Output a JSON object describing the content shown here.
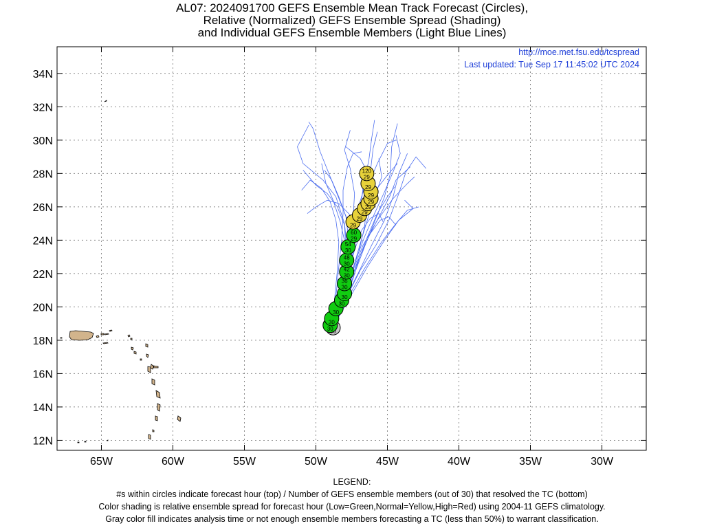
{
  "title": {
    "line1": "AL07: 2024091700 GEFS Ensemble Mean Track Forecast (Circles),",
    "line2": "Relative (Normalized) GEFS Ensemble Spread (Shading)",
    "line3": "and Individual GEFS Ensemble Members (Light Blue Lines)"
  },
  "info": {
    "url": "http://moe.met.fsu.edu/tcspread",
    "updated": "Last updated: Tue Sep 17 11:45:02 UTC 2024"
  },
  "map": {
    "lon_range": [
      -68.1,
      -26.9
    ],
    "lat_range": [
      11.4,
      35.6
    ],
    "lon_ticks": [
      {
        "value": -65,
        "label": "65W"
      },
      {
        "value": -60,
        "label": "60W"
      },
      {
        "value": -55,
        "label": "55W"
      },
      {
        "value": -50,
        "label": "50W"
      },
      {
        "value": -45,
        "label": "45W"
      },
      {
        "value": -40,
        "label": "40W"
      },
      {
        "value": -35,
        "label": "35W"
      },
      {
        "value": -30,
        "label": "30W"
      }
    ],
    "lat_ticks": [
      {
        "value": 12,
        "label": "12N"
      },
      {
        "value": 14,
        "label": "14N"
      },
      {
        "value": 16,
        "label": "16N"
      },
      {
        "value": 18,
        "label": "18N"
      },
      {
        "value": 20,
        "label": "20N"
      },
      {
        "value": 22,
        "label": "22N"
      },
      {
        "value": 24,
        "label": "24N"
      },
      {
        "value": 26,
        "label": "26N"
      },
      {
        "value": 28,
        "label": "28N"
      },
      {
        "value": 30,
        "label": "30N"
      },
      {
        "value": 32,
        "label": "32N"
      },
      {
        "value": 34,
        "label": "34N"
      }
    ],
    "grid": true,
    "colors": {
      "land": "#d2b48c",
      "member_track": "#4a6cf0",
      "low_spread": "#11cc11",
      "normal_spread": "#e8d23a",
      "gray_fill": "#c8c8c8"
    }
  },
  "mean_track": [
    {
      "lon": -48.8,
      "lat": 18.75,
      "top": "",
      "bottom": "30",
      "color": "gray"
    },
    {
      "lon": -49.0,
      "lat": 18.9,
      "top": "",
      "bottom": "30",
      "color": "green"
    },
    {
      "lon": -48.9,
      "lat": 19.3,
      "top": "",
      "bottom": "30",
      "color": "green"
    },
    {
      "lon": -48.6,
      "lat": 19.9,
      "top": "",
      "bottom": "30",
      "color": "green"
    },
    {
      "lon": -48.2,
      "lat": 20.4,
      "top": "",
      "bottom": "30",
      "color": "green"
    },
    {
      "lon": -48.0,
      "lat": 20.8,
      "top": "",
      "bottom": "30",
      "color": "green"
    },
    {
      "lon": -48.0,
      "lat": 21.4,
      "top": "36",
      "bottom": "30",
      "color": "green"
    },
    {
      "lon": -47.85,
      "lat": 22.1,
      "top": "42",
      "bottom": "30",
      "color": "green"
    },
    {
      "lon": -47.85,
      "lat": 22.8,
      "top": "48",
      "bottom": "30",
      "color": "green"
    },
    {
      "lon": -47.75,
      "lat": 23.6,
      "top": "54",
      "bottom": "30",
      "color": "green"
    },
    {
      "lon": -47.35,
      "lat": 24.3,
      "top": "60",
      "bottom": "29",
      "color": "green"
    },
    {
      "lon": -47.4,
      "lat": 25.1,
      "top": "",
      "bottom": "29",
      "color": "yellow"
    },
    {
      "lon": -46.95,
      "lat": 25.5,
      "top": "",
      "bottom": "29",
      "color": "yellow"
    },
    {
      "lon": -46.6,
      "lat": 25.9,
      "top": "",
      "bottom": "29",
      "color": "yellow"
    },
    {
      "lon": -46.35,
      "lat": 26.2,
      "top": "",
      "bottom": "29",
      "color": "yellow"
    },
    {
      "lon": -46.15,
      "lat": 26.5,
      "top": "",
      "bottom": "29",
      "color": "yellow"
    },
    {
      "lon": -46.15,
      "lat": 26.9,
      "top": "",
      "bottom": "29",
      "color": "yellow"
    },
    {
      "lon": -46.35,
      "lat": 27.4,
      "top": "",
      "bottom": "29",
      "color": "yellow"
    },
    {
      "lon": -46.45,
      "lat": 28.0,
      "top": "120",
      "bottom": "29",
      "color": "yellow"
    }
  ],
  "ensemble_members": [
    [
      [
        -48.8,
        18.8
      ],
      [
        -48.3,
        20.2
      ],
      [
        -47.7,
        21.6
      ],
      [
        -47.4,
        23.2
      ],
      [
        -47.6,
        24.8
      ],
      [
        -48.3,
        26.3
      ],
      [
        -49.0,
        27.8
      ],
      [
        -49.7,
        29.3
      ],
      [
        -50.2,
        30.7
      ],
      [
        -50.5,
        31.1
      ]
    ],
    [
      [
        -48.8,
        18.8
      ],
      [
        -48.4,
        20.0
      ],
      [
        -48.0,
        21.6
      ],
      [
        -47.8,
        23.4
      ],
      [
        -48.0,
        25.0
      ],
      [
        -48.6,
        26.6
      ],
      [
        -49.5,
        27.6
      ],
      [
        -50.9,
        28.6
      ],
      [
        -51.3,
        29.6
      ],
      [
        -50.5,
        30.9
      ]
    ],
    [
      [
        -48.8,
        18.8
      ],
      [
        -48.2,
        20.2
      ],
      [
        -47.6,
        21.8
      ],
      [
        -47.0,
        23.3
      ],
      [
        -46.6,
        24.8
      ],
      [
        -46.4,
        26.4
      ],
      [
        -46.2,
        28.0
      ],
      [
        -46.0,
        29.5
      ],
      [
        -45.7,
        30.5
      ]
    ],
    [
      [
        -48.8,
        18.8
      ],
      [
        -48.1,
        20.3
      ],
      [
        -47.3,
        22.0
      ],
      [
        -46.6,
        23.6
      ],
      [
        -45.9,
        25.1
      ],
      [
        -45.2,
        26.6
      ],
      [
        -44.8,
        28.0
      ],
      [
        -44.7,
        29.6
      ],
      [
        -44.3,
        31.0
      ]
    ],
    [
      [
        -48.8,
        18.8
      ],
      [
        -48.0,
        20.4
      ],
      [
        -47.0,
        22.1
      ],
      [
        -46.1,
        23.7
      ],
      [
        -45.2,
        25.2
      ],
      [
        -44.6,
        26.6
      ],
      [
        -44.2,
        28.0
      ],
      [
        -43.6,
        29.2
      ]
    ],
    [
      [
        -48.8,
        18.8
      ],
      [
        -47.9,
        20.5
      ],
      [
        -46.9,
        22.2
      ],
      [
        -45.8,
        23.7
      ],
      [
        -44.9,
        25.2
      ],
      [
        -44.2,
        26.8
      ],
      [
        -43.7,
        28.1
      ],
      [
        -43.0,
        29.0
      ],
      [
        -42.3,
        28.3
      ]
    ],
    [
      [
        -48.8,
        18.8
      ],
      [
        -47.8,
        20.5
      ],
      [
        -46.6,
        22.3
      ],
      [
        -45.4,
        23.9
      ],
      [
        -44.4,
        25.0
      ],
      [
        -43.6,
        25.8
      ],
      [
        -42.8,
        26.0
      ]
    ],
    [
      [
        -48.8,
        18.8
      ],
      [
        -47.6,
        20.6
      ],
      [
        -46.4,
        22.4
      ],
      [
        -45.2,
        24.0
      ],
      [
        -44.2,
        25.2
      ],
      [
        -43.2,
        25.9
      ],
      [
        -43.8,
        26.4
      ]
    ],
    [
      [
        -48.8,
        18.8
      ],
      [
        -48.6,
        20.0
      ],
      [
        -48.2,
        21.8
      ],
      [
        -47.9,
        23.4
      ],
      [
        -48.0,
        24.9
      ],
      [
        -48.5,
        26.0
      ],
      [
        -49.2,
        26.8
      ],
      [
        -50.0,
        27.3
      ],
      [
        -50.9,
        28.2
      ]
    ],
    [
      [
        -48.8,
        18.8
      ],
      [
        -48.5,
        20.3
      ],
      [
        -48.1,
        22.0
      ],
      [
        -47.9,
        23.6
      ],
      [
        -48.3,
        25.1
      ],
      [
        -48.8,
        26.4
      ],
      [
        -49.3,
        27.4
      ],
      [
        -49.6,
        28.6
      ]
    ],
    [
      [
        -48.8,
        18.8
      ],
      [
        -48.3,
        20.4
      ],
      [
        -47.9,
        22.1
      ],
      [
        -47.5,
        23.8
      ],
      [
        -47.4,
        25.3
      ],
      [
        -47.3,
        26.8
      ],
      [
        -47.6,
        28.3
      ],
      [
        -48.0,
        29.4
      ],
      [
        -47.6,
        30.6
      ]
    ],
    [
      [
        -48.8,
        18.8
      ],
      [
        -48.2,
        20.5
      ],
      [
        -47.7,
        22.2
      ],
      [
        -47.2,
        24.0
      ],
      [
        -46.9,
        25.6
      ],
      [
        -46.7,
        27.2
      ],
      [
        -46.3,
        28.8
      ],
      [
        -46.1,
        30.1
      ],
      [
        -45.9,
        31.2
      ]
    ],
    [
      [
        -48.8,
        18.8
      ],
      [
        -48.1,
        20.5
      ],
      [
        -47.4,
        22.3
      ],
      [
        -46.8,
        24.1
      ],
      [
        -46.3,
        25.5
      ],
      [
        -45.8,
        26.8
      ],
      [
        -45.4,
        27.8
      ],
      [
        -45.6,
        28.9
      ]
    ],
    [
      [
        -48.8,
        18.8
      ],
      [
        -48.0,
        20.6
      ],
      [
        -47.2,
        22.4
      ],
      [
        -46.4,
        24.2
      ],
      [
        -45.7,
        25.6
      ],
      [
        -45.0,
        26.6
      ],
      [
        -44.5,
        27.2
      ]
    ],
    [
      [
        -48.8,
        18.8
      ],
      [
        -48.2,
        20.8
      ],
      [
        -47.6,
        22.6
      ],
      [
        -47.3,
        24.3
      ],
      [
        -47.6,
        25.5
      ],
      [
        -48.4,
        26.2
      ],
      [
        -49.2,
        26.4
      ],
      [
        -50.0,
        26.0
      ],
      [
        -50.6,
        25.6
      ]
    ],
    [
      [
        -48.8,
        18.8
      ],
      [
        -48.3,
        20.6
      ],
      [
        -47.8,
        22.4
      ],
      [
        -47.7,
        24.0
      ],
      [
        -47.9,
        25.4
      ],
      [
        -48.4,
        26.6
      ],
      [
        -48.9,
        27.6
      ],
      [
        -49.4,
        28.2
      ]
    ],
    [
      [
        -48.8,
        18.8
      ],
      [
        -48.0,
        20.7
      ],
      [
        -47.3,
        22.6
      ],
      [
        -46.6,
        24.2
      ],
      [
        -45.9,
        25.6
      ],
      [
        -45.2,
        26.9
      ],
      [
        -44.6,
        28.1
      ],
      [
        -44.1,
        29.2
      ],
      [
        -44.4,
        30.3
      ]
    ],
    [
      [
        -48.8,
        18.8
      ],
      [
        -47.9,
        20.8
      ],
      [
        -47.1,
        22.7
      ],
      [
        -46.2,
        24.4
      ],
      [
        -45.4,
        25.7
      ],
      [
        -44.8,
        26.7
      ],
      [
        -44.4,
        27.6
      ],
      [
        -43.4,
        28.4
      ]
    ],
    [
      [
        -48.8,
        18.8
      ],
      [
        -48.4,
        20.4
      ],
      [
        -48.1,
        22.2
      ],
      [
        -47.7,
        23.9
      ],
      [
        -47.0,
        25.4
      ],
      [
        -46.0,
        26.8
      ],
      [
        -45.0,
        27.9
      ],
      [
        -44.3,
        28.6
      ]
    ],
    [
      [
        -48.8,
        18.8
      ],
      [
        -48.6,
        20.6
      ],
      [
        -48.4,
        22.4
      ],
      [
        -48.2,
        24.0
      ],
      [
        -48.1,
        25.6
      ],
      [
        -48.1,
        27.0
      ],
      [
        -47.8,
        28.4
      ],
      [
        -47.4,
        29.2
      ],
      [
        -46.8,
        29.3
      ]
    ],
    [
      [
        -48.8,
        18.8
      ],
      [
        -48.3,
        20.2
      ],
      [
        -47.8,
        21.9
      ],
      [
        -47.3,
        23.4
      ],
      [
        -46.8,
        24.6
      ],
      [
        -46.2,
        25.3
      ],
      [
        -45.6,
        25.6
      ],
      [
        -45.3,
        25.1
      ]
    ],
    [
      [
        -48.8,
        18.8
      ],
      [
        -48.1,
        20.1
      ],
      [
        -47.4,
        21.7
      ],
      [
        -46.9,
        23.1
      ],
      [
        -46.2,
        24.4
      ],
      [
        -45.5,
        25.2
      ],
      [
        -44.9,
        25.4
      ],
      [
        -44.4,
        24.9
      ]
    ],
    [
      [
        -48.8,
        18.8
      ],
      [
        -48.7,
        20.4
      ],
      [
        -48.5,
        22.2
      ],
      [
        -48.4,
        23.9
      ],
      [
        -48.6,
        25.2
      ],
      [
        -49.0,
        26.3
      ],
      [
        -49.6,
        27.1
      ],
      [
        -50.4,
        27.6
      ],
      [
        -51.0,
        27.0
      ]
    ],
    [
      [
        -48.8,
        18.8
      ],
      [
        -48.2,
        20.3
      ],
      [
        -47.5,
        22.0
      ],
      [
        -46.7,
        23.7
      ],
      [
        -45.7,
        25.2
      ],
      [
        -44.6,
        26.5
      ],
      [
        -43.6,
        27.4
      ],
      [
        -43.1,
        27.8
      ]
    ],
    [
      [
        -48.8,
        18.8
      ],
      [
        -48.4,
        20.5
      ],
      [
        -48.0,
        22.3
      ],
      [
        -47.6,
        24.0
      ],
      [
        -47.2,
        25.5
      ],
      [
        -46.7,
        26.9
      ],
      [
        -46.4,
        28.1
      ],
      [
        -46.9,
        28.9
      ],
      [
        -47.9,
        29.6
      ]
    ],
    [
      [
        -48.8,
        18.8
      ],
      [
        -48.3,
        20.6
      ],
      [
        -47.8,
        22.4
      ],
      [
        -47.4,
        24.1
      ],
      [
        -47.0,
        25.7
      ],
      [
        -46.4,
        27.2
      ],
      [
        -45.7,
        28.6
      ],
      [
        -45.0,
        29.8
      ],
      [
        -44.4,
        30.0
      ]
    ]
  ],
  "legend": {
    "heading": "LEGEND:",
    "line1": "#s within circles indicate forecast hour (top) / Number of GEFS ensemble members (out of 30) that resolved the TC (bottom)",
    "line2": "Color shading is relative ensemble spread for forecast hour (Low=Green,Normal=Yellow,High=Red) using 2004-11 GEFS climatology.",
    "line3": "Gray color fill indicates analysis time or not enough ensemble members forecasting a TC (less than 50%) to warrant classification."
  }
}
